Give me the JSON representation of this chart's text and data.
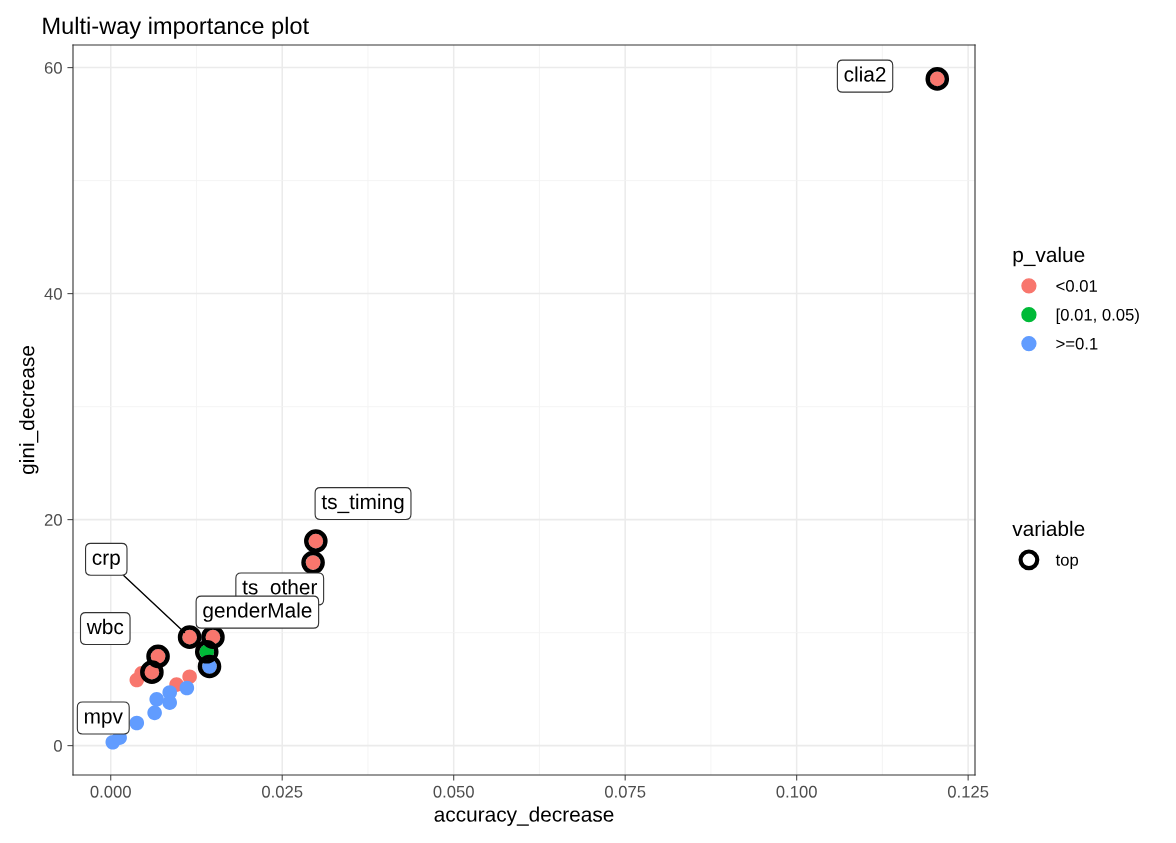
{
  "chart_data": {
    "type": "scatter",
    "title": "Multi-way importance plot",
    "xlabel": "accuracy_decrease",
    "ylabel": "gini_decrease",
    "xlim": [
      -0.0055,
      0.126
    ],
    "ylim": [
      -2.6,
      62
    ],
    "xticks": [
      {
        "value": 0,
        "label": "0.000"
      },
      {
        "value": 0.025,
        "label": "0.025"
      },
      {
        "value": 0.05,
        "label": "0.050"
      },
      {
        "value": 0.075,
        "label": "0.075"
      },
      {
        "value": 0.1,
        "label": "0.100"
      },
      {
        "value": 0.125,
        "label": "0.125"
      }
    ],
    "yticks": [
      0,
      20,
      40,
      60
    ],
    "grid": true,
    "legend": "right",
    "marker": "circle",
    "legend_title": [
      "p_value",
      "variable"
    ],
    "series": [
      {
        "name": "<0.01",
        "color": "#f8766d",
        "x": [
          0.1205,
          0.0299,
          0.0295,
          0.0115,
          0.0149,
          0.0069,
          0.006,
          0.0038,
          0.0115,
          0.0096,
          0.0045
        ],
        "values": [
          59.0,
          18.1,
          16.2,
          9.6,
          9.6,
          7.9,
          6.5,
          5.8,
          6.1,
          5.4,
          6.4
        ]
      },
      {
        "name": "[0.01, 0.05)",
        "color": "#00ba38",
        "x": [
          0.014
        ],
        "values": [
          8.3
        ]
      },
      {
        "name": ">=0.1",
        "color": "#619cff",
        "x": [
          0.0144,
          0.0111,
          0.0086,
          0.0086,
          0.0067,
          0.0064,
          0.0038,
          0.0003,
          0.0013
        ],
        "values": [
          7.0,
          5.1,
          4.7,
          3.8,
          4.1,
          2.9,
          2.0,
          0.3,
          0.7
        ]
      },
      {
        "name": "top",
        "color": "#000000",
        "x": [
          0.1205,
          0.0299,
          0.0295,
          0.0115,
          0.0149,
          0.0069,
          0.006,
          0.014,
          0.0144
        ],
        "values": [
          59.0,
          18.1,
          16.2,
          9.6,
          9.6,
          7.9,
          6.5,
          8.3,
          7.0
        ]
      }
    ],
    "annotations": [
      {
        "text": "clia2",
        "x": 0.1205,
        "y": 59.0
      },
      {
        "text": "ts_timing",
        "x": 0.0299,
        "y": 18.1
      },
      {
        "text": "ts_other",
        "x": 0.0295,
        "y": 16.2
      },
      {
        "text": "crp",
        "x": 0.0115,
        "y": 9.6
      },
      {
        "text": "genderMale",
        "x": 0.0149,
        "y": 9.6
      },
      {
        "text": "wbc",
        "x": 0.0069,
        "y": 7.9
      },
      {
        "text": "mpv",
        "x": 0.006,
        "y": 6.5
      }
    ]
  }
}
